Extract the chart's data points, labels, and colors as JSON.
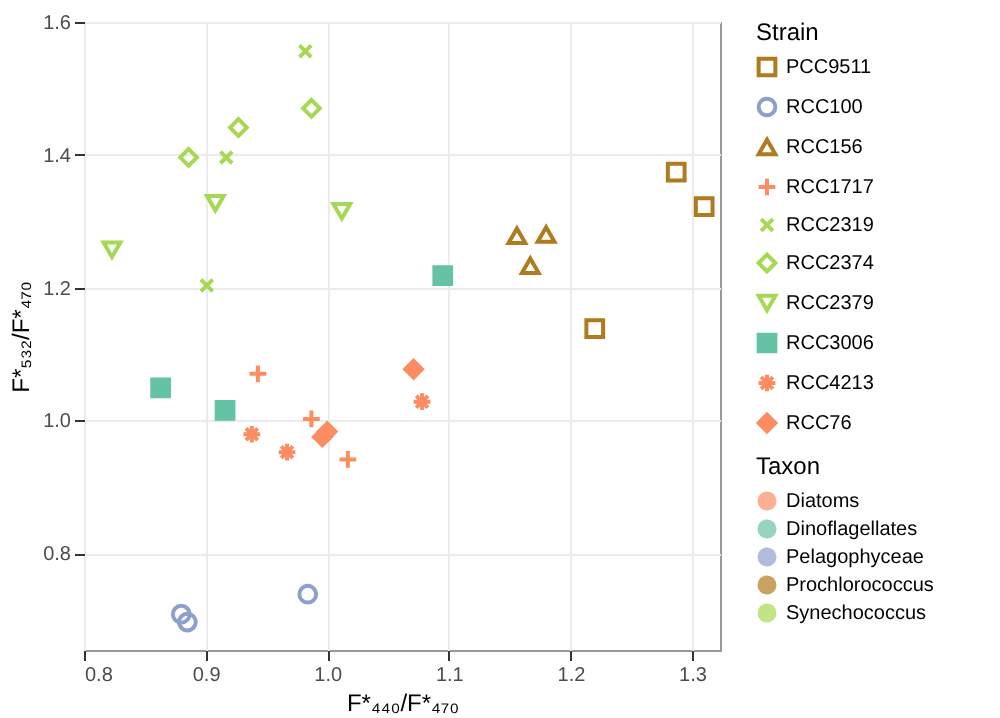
{
  "chart_data": {
    "type": "scatter",
    "xlabel": "F*₄₄₀/F*₄₇₀",
    "ylabel": "F*₅₃₂/F*₄₇₀",
    "xlim": [
      0.8,
      1.323
    ],
    "ylim": [
      0.654,
      1.6
    ],
    "xticks": [
      0.8,
      0.9,
      {
        "value": 1,
        "label": "1.0"
      },
      1.1,
      1.2,
      1.3
    ],
    "yticks": [
      0.8,
      {
        "value": 1,
        "label": "1.0"
      },
      1.2,
      1.4,
      1.6
    ],
    "grid": true,
    "legend": "right",
    "legend_title": [
      "Strain",
      "Taxon"
    ],
    "series": [
      {
        "name": "PCC9511",
        "color": "#b07a1e",
        "x": [
          1.22,
          1.287,
          1.31
        ],
        "values": [
          1.138,
          1.374,
          1.322
        ]
      },
      {
        "name": "RCC100",
        "color": "#8da0cb",
        "x": [
          0.88,
          0.885,
          0.984
        ],
        "values": [
          0.708,
          0.696,
          0.738
        ]
      },
      {
        "name": "RCC156",
        "color": "#b07a1e",
        "x": [
          1.156,
          1.18,
          1.167
        ],
        "values": [
          1.278,
          1.28,
          1.233
        ]
      },
      {
        "name": "RCC1717",
        "color": "#fc8d62",
        "x": [
          0.943,
          0.987,
          1.017
        ],
        "values": [
          1.07,
          1.002,
          0.941
        ]
      },
      {
        "name": "RCC2319",
        "color": "#a6d854",
        "x": [
          0.982,
          0.917,
          0.901
        ],
        "values": [
          1.556,
          1.396,
          1.203
        ]
      },
      {
        "name": "RCC2374",
        "color": "#a6d854",
        "x": [
          0.886,
          0.927,
          0.987
        ],
        "values": [
          1.396,
          1.441,
          1.47
        ]
      },
      {
        "name": "RCC2379",
        "color": "#a6d854",
        "x": [
          0.823,
          0.908,
          1.012
        ],
        "values": [
          1.257,
          1.327,
          1.315
        ]
      },
      {
        "name": "RCC3006",
        "color": "#66c2a5",
        "x": [
          1.095,
          0.863,
          0.916
        ],
        "values": [
          1.218,
          1.049,
          1.015
        ]
      },
      {
        "name": "RCC4213",
        "color": "#fc8d62",
        "x": [
          0.938,
          0.967,
          1.078
        ],
        "values": [
          0.979,
          0.952,
          1.028
        ]
      },
      {
        "name": "RCC76",
        "color": "#fc8d62",
        "x": [
          1.071,
          0.996,
          1.0
        ],
        "values": [
          1.077,
          0.975,
          0.983
        ]
      },
      {
        "name": "Diatoms",
        "color": "#fc8d62"
      },
      {
        "name": "Dinoflagellates",
        "color": "#66c2a5"
      },
      {
        "name": "Pelagophyceae",
        "color": "#8da0cb"
      },
      {
        "name": "Prochlorococcus",
        "color": "#b07a1e"
      },
      {
        "name": "Synechococcus",
        "color": "#a6d854"
      }
    ]
  }
}
